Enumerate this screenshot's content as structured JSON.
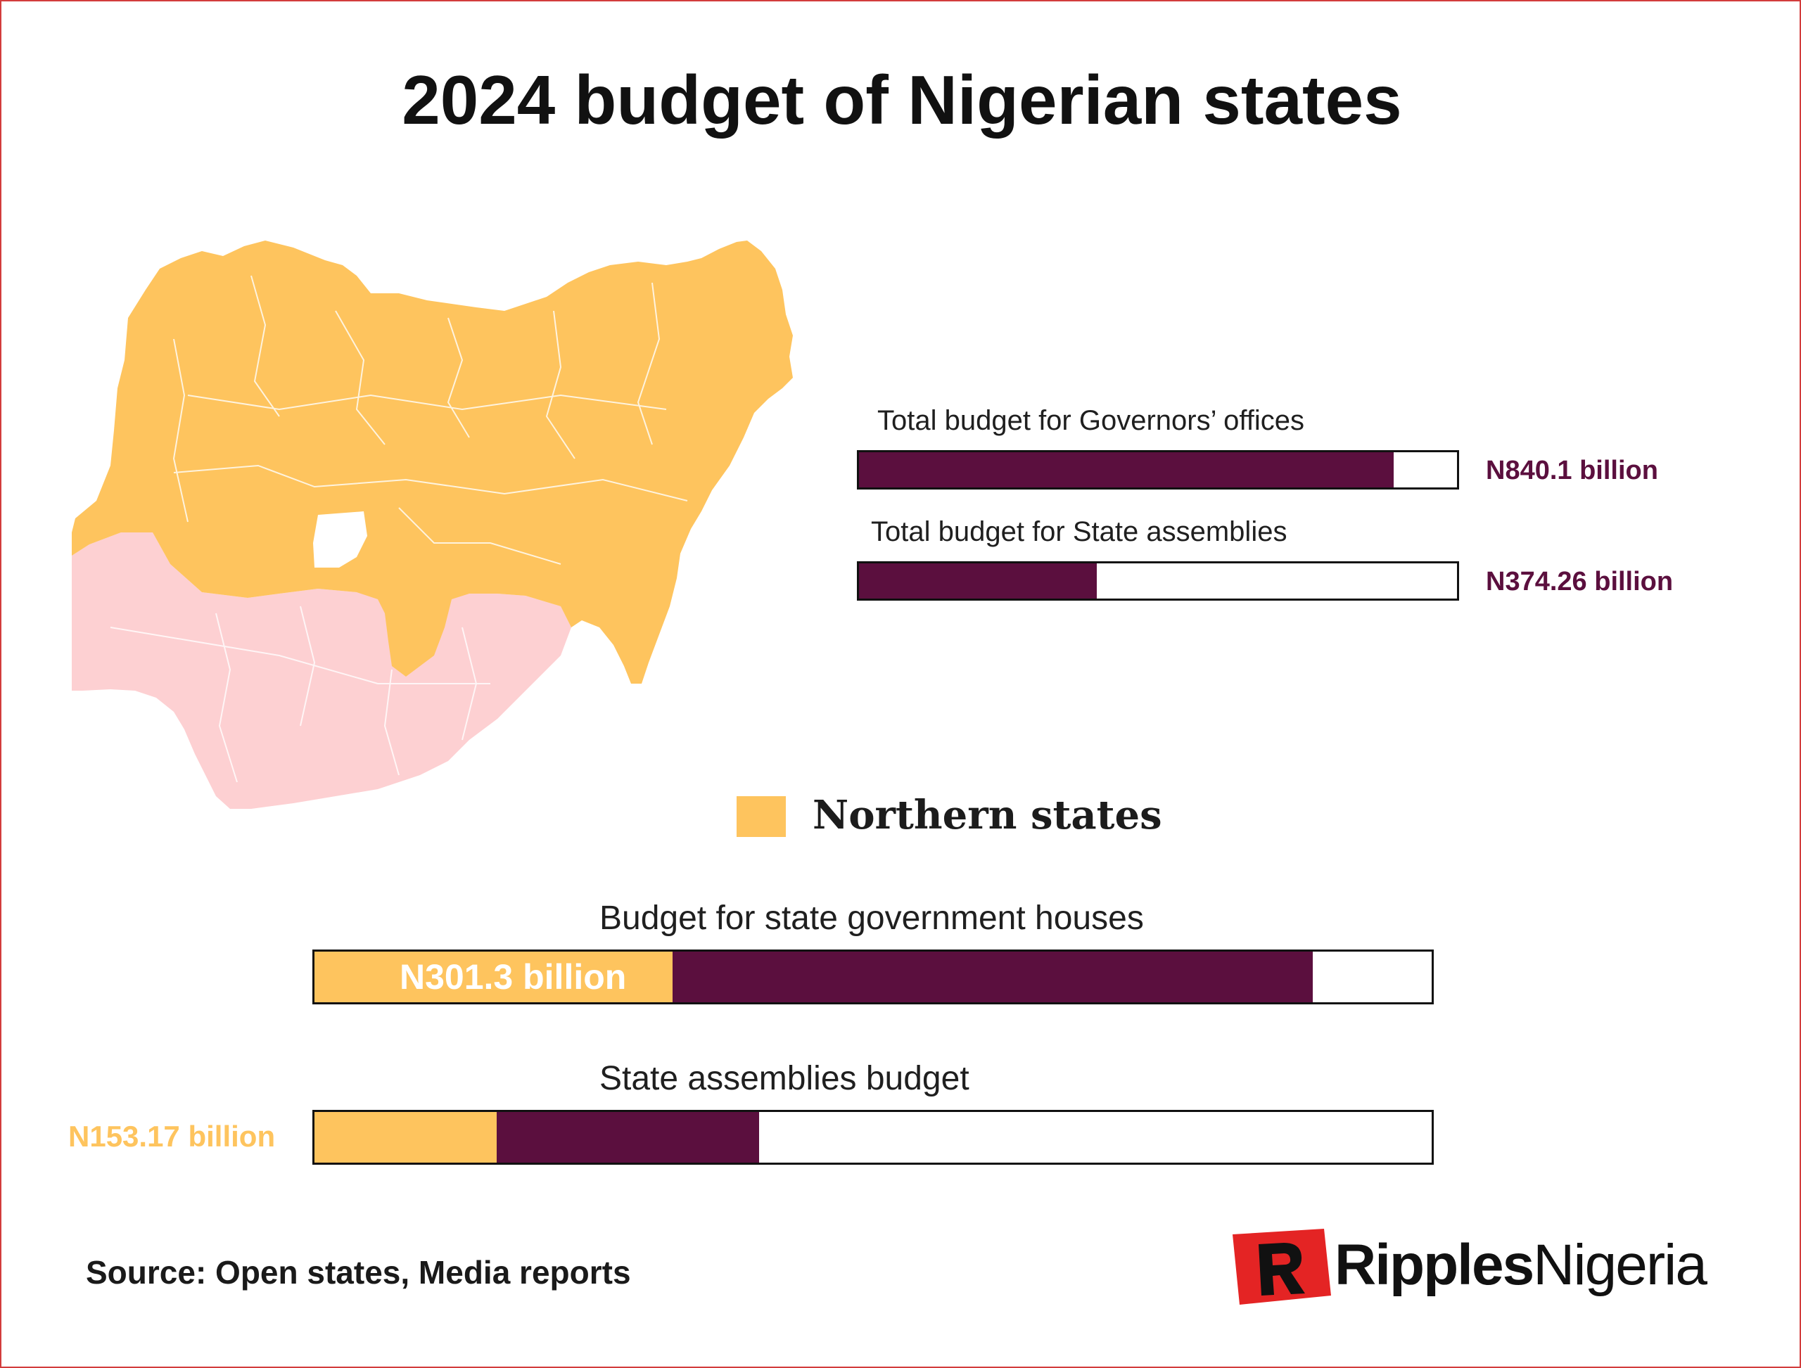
{
  "title": "2024 budget of Nigerian states",
  "colors": {
    "northern": "#fec45e",
    "southern": "#fdd0d2",
    "bar_fill": "#5b0f3e",
    "value_text": "#5b0f3e",
    "northern_value_text": "#fec45e",
    "brand_red": "#e42424"
  },
  "legend": {
    "northern_label": "Northern states"
  },
  "source": "Source: Open states, Media reports",
  "logo": {
    "part1": "Ripples",
    "part2": "Nigeria"
  },
  "chart_data": [
    {
      "type": "bar",
      "orientation": "horizontal",
      "categories": [
        "Total budget for Governors’ offices",
        "Total budget for State assemblies"
      ],
      "values": [
        840.1,
        374.26
      ],
      "value_labels": [
        "N840.1 billion",
        "N374.26 billion"
      ],
      "unit": "billion",
      "xlim": [
        0,
        940
      ]
    },
    {
      "type": "bar",
      "orientation": "horizontal",
      "stacked": true,
      "categories": [
        "Budget for state government houses",
        "State assemblies budget"
      ],
      "series": [
        {
          "name": "Northern states",
          "values": [
            301.3,
            153.17
          ],
          "value_labels": [
            "N301.3 billion",
            "N153.17 billion"
          ]
        }
      ],
      "totals": [
        840.1,
        374.26
      ],
      "unit": "billion",
      "xlim": [
        0,
        940
      ]
    }
  ]
}
